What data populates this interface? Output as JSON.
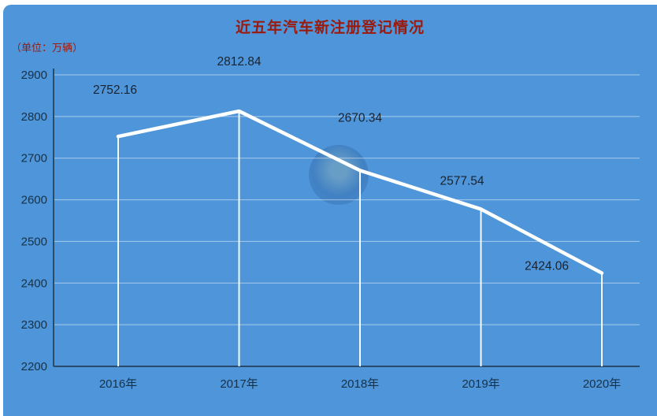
{
  "title": "近五年汽车新注册登记情况",
  "unit_label": "（单位：万辆）",
  "colors": {
    "background": "#4e95d9",
    "title": "#9a1a0d",
    "line": "#ffffff",
    "axis": "#2a4a6b",
    "grid": "rgba(255,255,255,0.5)",
    "tick_text": "#16324a",
    "data_label_text": "#1a2330"
  },
  "chart_data": {
    "type": "line",
    "title": "近五年汽车新注册登记情况",
    "unit": "（单位：万辆）",
    "categories": [
      "2016年",
      "2017年",
      "2018年",
      "2019年",
      "2020年"
    ],
    "values": [
      2752.16,
      2812.84,
      2670.34,
      2577.54,
      2424.06
    ],
    "data_labels": [
      "2752.16",
      "2812.84",
      "2670.34",
      "2577.54",
      "2424.06"
    ],
    "ylim": [
      2200,
      2900
    ],
    "yticks": [
      2200,
      2300,
      2400,
      2500,
      2600,
      2700,
      2800,
      2900
    ],
    "grid": true,
    "legend": "none",
    "xlabel": "",
    "ylabel": ""
  }
}
